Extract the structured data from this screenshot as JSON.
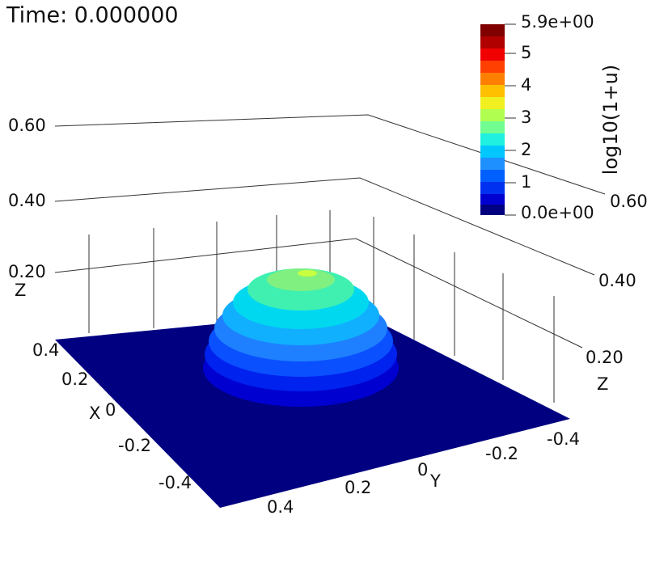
{
  "title": "Time: 0.000000",
  "colorbar": {
    "title": "log10(1+u)",
    "labels": [
      "5.9e+00",
      "5",
      "4",
      "3",
      "2",
      "1",
      "0.0e+00"
    ]
  },
  "axes": {
    "z_left": {
      "title": "Z",
      "labels": [
        "0.60",
        "0.40",
        "0.20"
      ]
    },
    "z_right": {
      "title": "Z",
      "labels": [
        "0.60",
        "0.40",
        "0.20"
      ]
    },
    "x": {
      "title": "X",
      "labels": [
        "0.4",
        "0.2",
        "0",
        "-0.2",
        "-0.4"
      ]
    },
    "y": {
      "title": "Y",
      "labels": [
        "-0.4",
        "-0.2",
        "0",
        "0.2",
        "0.4"
      ]
    }
  }
}
